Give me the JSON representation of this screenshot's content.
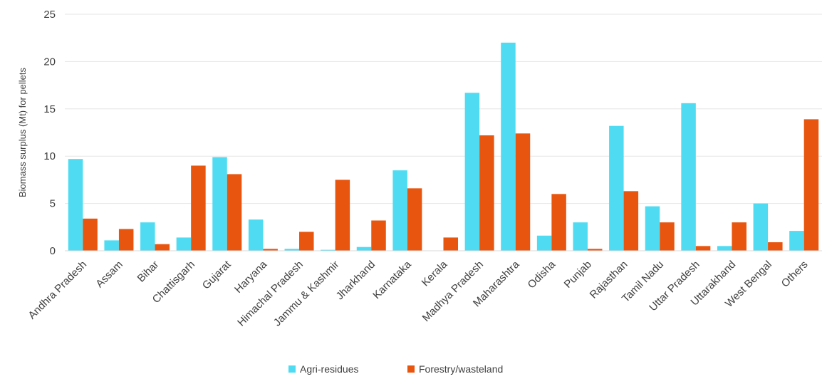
{
  "chart_data": {
    "type": "bar",
    "title": "",
    "xlabel": "",
    "ylabel": "Biomass surplus (Mt) for pellets",
    "ylim": [
      0,
      25
    ],
    "yticks": [
      0,
      5,
      10,
      15,
      20,
      25
    ],
    "grid": true,
    "legend_position": "bottom",
    "categories": [
      "Andhra Pradesh",
      "Assam",
      "Bihar",
      "Chattisgarh",
      "Gujarat",
      "Haryana",
      "Himachal Pradesh",
      "Jammu & Kashmir",
      "Jharkhand",
      "Karnataka",
      "Kerala",
      "Madhya Pradesh",
      "Maharashtra",
      "Odisha",
      "Punjab",
      "Rajasthan",
      "Tamil Nadu",
      "Uttar Pradesh",
      "Uttarakhand",
      "West Bengal",
      "Others"
    ],
    "series": [
      {
        "name": "Agri-residues",
        "color": "#4fdcf2",
        "values": [
          9.7,
          1.1,
          3.0,
          1.4,
          9.9,
          3.3,
          0.2,
          0.1,
          0.4,
          8.5,
          0.0,
          16.7,
          22.0,
          1.6,
          3.0,
          13.2,
          4.7,
          15.6,
          0.5,
          5.0,
          2.1
        ]
      },
      {
        "name": "Forestry/wasteland",
        "color": "#e8550f",
        "values": [
          3.4,
          2.3,
          0.7,
          9.0,
          8.1,
          0.2,
          2.0,
          7.5,
          3.2,
          6.6,
          1.4,
          12.2,
          12.4,
          6.0,
          0.2,
          6.3,
          3.0,
          0.5,
          3.0,
          0.9,
          13.9
        ]
      }
    ]
  }
}
